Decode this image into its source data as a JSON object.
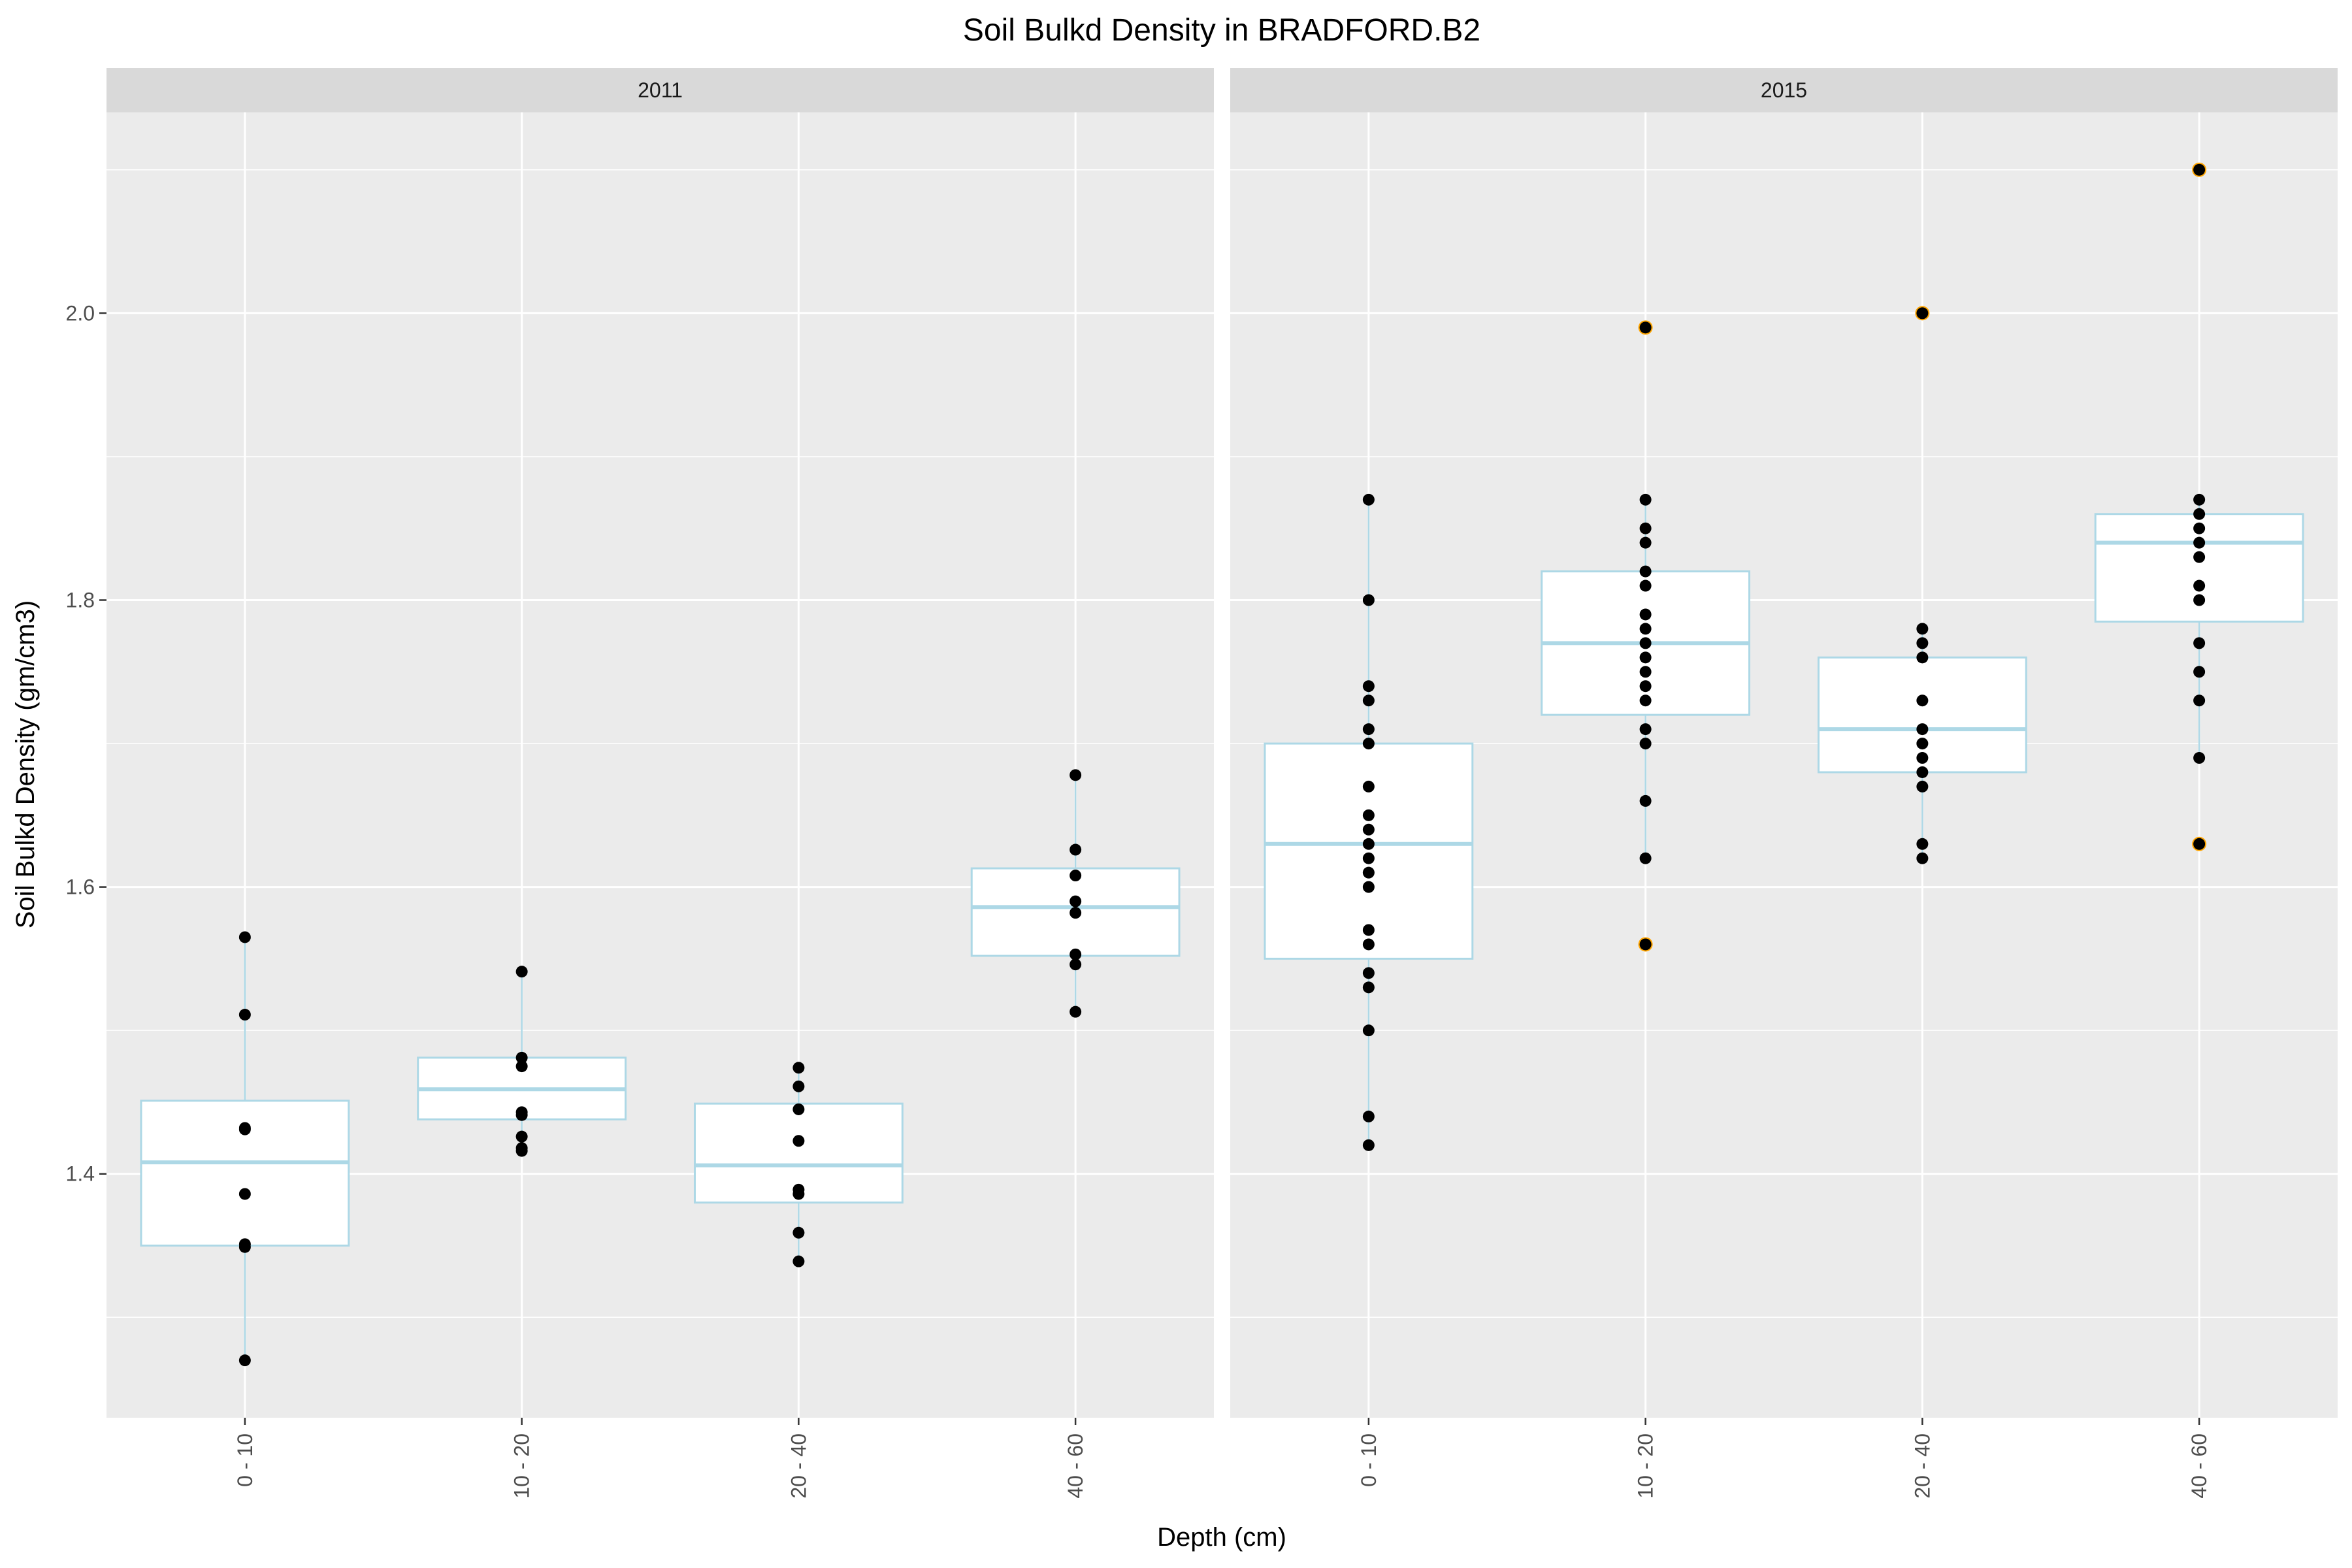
{
  "chart_data": {
    "type": "box",
    "title": "Soil Bulkd Density in BRADFORD.B2",
    "xlabel": "Depth (cm)",
    "ylabel": "Soil Bulkd Density (gm/cm3)",
    "categories": [
      "0 - 10",
      "10 - 20",
      "20 - 40",
      "40 - 60"
    ],
    "ylim": [
      1.23,
      2.14
    ],
    "y_ticks": [
      1.4,
      1.6,
      1.8,
      2.0
    ],
    "y_tick_labels": [
      "1.4",
      "1.6",
      "1.8",
      "2.0"
    ],
    "grid": true,
    "legend": "none",
    "colors": {
      "panel_background": "#ebebeb",
      "strip_background": "#d9d9d9",
      "grid": "#ffffff",
      "box_line": "#add8e6",
      "box_fill": "#ffffff",
      "point": "#000000",
      "outlier": "#ffa500"
    },
    "panels": [
      {
        "label": "2011",
        "boxes": [
          {
            "category": "0 - 10",
            "q1": 1.35,
            "median": 1.408,
            "q3": 1.451,
            "whisker_low": 1.27,
            "whisker_high": 1.565,
            "outliers": [],
            "points": [
              1.565,
              1.511,
              1.432,
              1.431,
              1.386,
              1.351,
              1.349,
              1.27
            ]
          },
          {
            "category": "10 - 20",
            "q1": 1.438,
            "median": 1.459,
            "q3": 1.481,
            "whisker_low": 1.416,
            "whisker_high": 1.541,
            "outliers": [],
            "points": [
              1.541,
              1.481,
              1.475,
              1.443,
              1.441,
              1.426,
              1.418,
              1.416
            ]
          },
          {
            "category": "20 - 40",
            "q1": 1.38,
            "median": 1.406,
            "q3": 1.449,
            "whisker_low": 1.339,
            "whisker_high": 1.474,
            "outliers": [],
            "points": [
              1.474,
              1.461,
              1.445,
              1.423,
              1.389,
              1.386,
              1.359,
              1.339
            ]
          },
          {
            "category": "40 - 60",
            "q1": 1.552,
            "median": 1.586,
            "q3": 1.613,
            "whisker_low": 1.513,
            "whisker_high": 1.678,
            "outliers": [],
            "points": [
              1.678,
              1.626,
              1.608,
              1.59,
              1.582,
              1.553,
              1.546,
              1.513
            ]
          }
        ]
      },
      {
        "label": "2015",
        "boxes": [
          {
            "category": "0 - 10",
            "q1": 1.55,
            "median": 1.63,
            "q3": 1.7,
            "whisker_low": 1.42,
            "whisker_high": 1.87,
            "outliers": [],
            "points": [
              1.87,
              1.8,
              1.74,
              1.73,
              1.71,
              1.7,
              1.67,
              1.65,
              1.64,
              1.63,
              1.62,
              1.61,
              1.6,
              1.57,
              1.56,
              1.54,
              1.53,
              1.5,
              1.44,
              1.42
            ]
          },
          {
            "category": "10 - 20",
            "q1": 1.72,
            "median": 1.77,
            "q3": 1.82,
            "whisker_low": 1.62,
            "whisker_high": 1.87,
            "outliers": [
              1.99,
              1.56
            ],
            "points": [
              1.87,
              1.85,
              1.84,
              1.82,
              1.81,
              1.79,
              1.78,
              1.77,
              1.76,
              1.75,
              1.74,
              1.73,
              1.71,
              1.7,
              1.66,
              1.62
            ]
          },
          {
            "category": "20 - 40",
            "q1": 1.68,
            "median": 1.71,
            "q3": 1.76,
            "whisker_low": 1.62,
            "whisker_high": 1.78,
            "outliers": [
              2.0
            ],
            "points": [
              1.78,
              1.77,
              1.76,
              1.73,
              1.71,
              1.7,
              1.69,
              1.68,
              1.67,
              1.63,
              1.62
            ]
          },
          {
            "category": "40 - 60",
            "q1": 1.785,
            "median": 1.84,
            "q3": 1.86,
            "whisker_low": 1.69,
            "whisker_high": 1.87,
            "outliers": [
              2.1,
              1.63
            ],
            "points": [
              1.87,
              1.86,
              1.85,
              1.84,
              1.83,
              1.81,
              1.8,
              1.77,
              1.75,
              1.73,
              1.69
            ]
          }
        ]
      }
    ]
  }
}
